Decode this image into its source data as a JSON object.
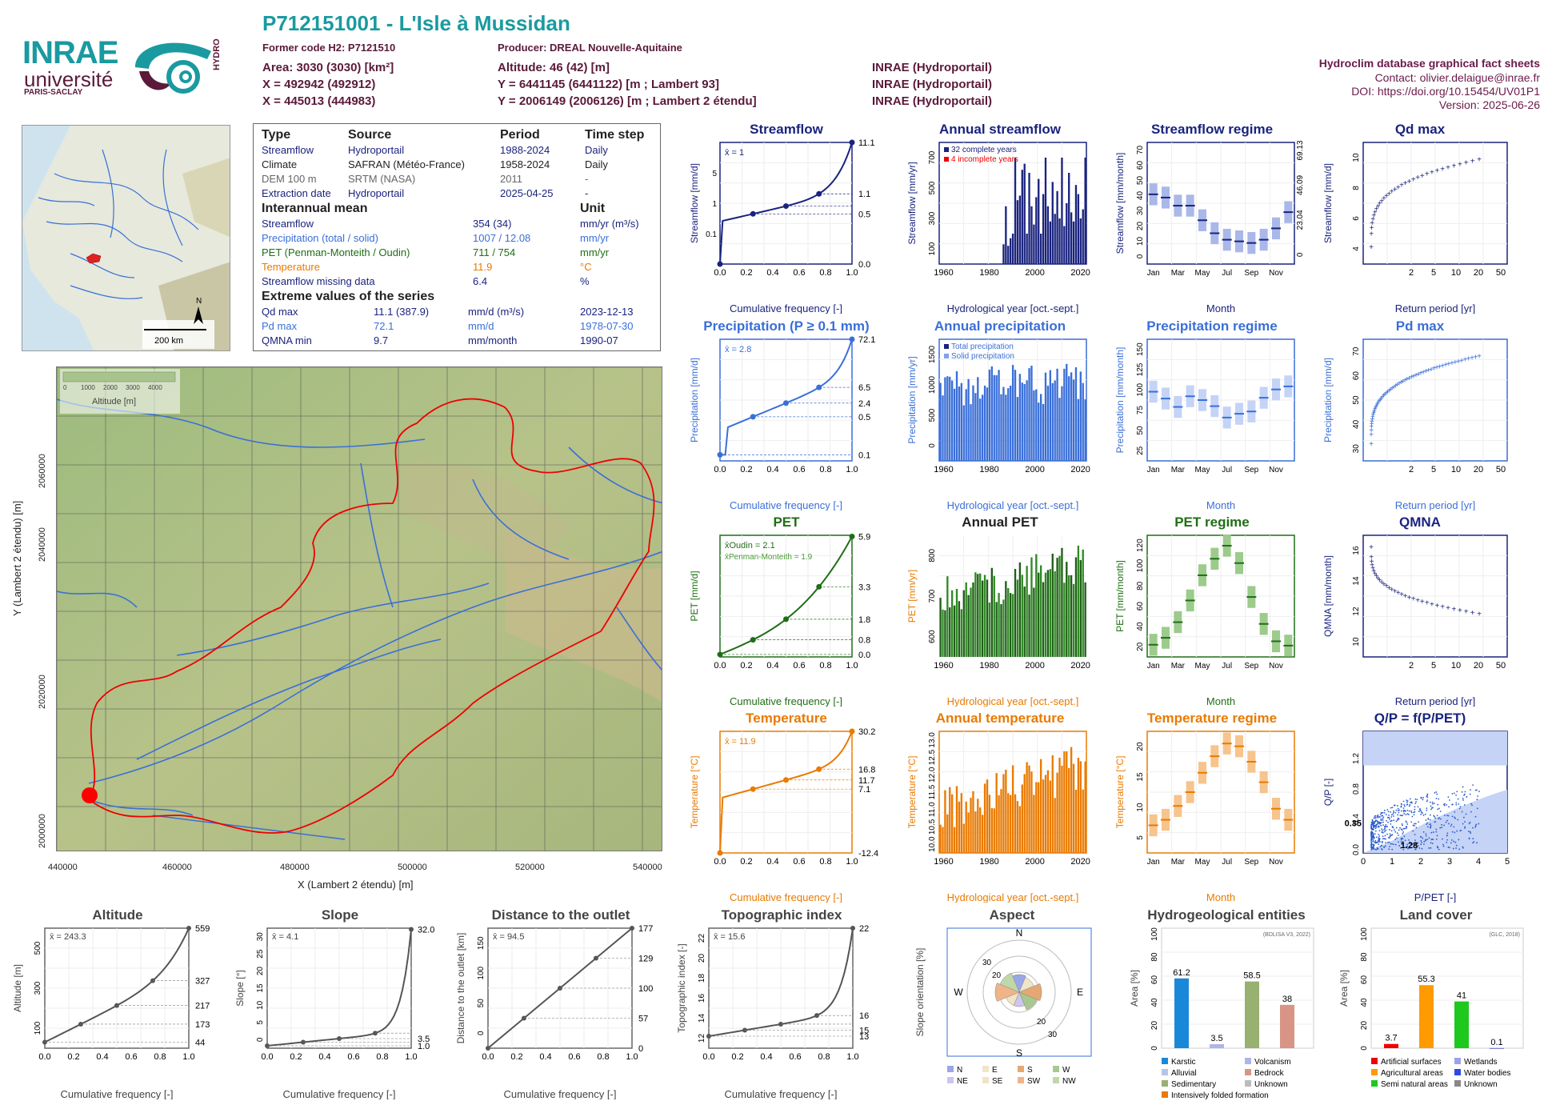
{
  "header": {
    "title": "P712151001 - L'Isle à Mussidan",
    "former_code": "Former code H2: P7121510",
    "producer": "Producer: DREAL Nouvelle-Aquitaine",
    "area": "Area: 3030 (3030) [km²]",
    "x93": "X = 492942 (492912)",
    "x2e": "X = 445013 (444983)",
    "altitude": "Altitude: 46 (42) [m]",
    "y93": "Y = 6441145 (6441122) [m ; Lambert 93]",
    "y2e": "Y = 2006149 (2006126) [m ; Lambert 2 étendu]",
    "src1": "INRAE (Hydroportail)",
    "src2": "INRAE (Hydroportail)",
    "src3": "INRAE (Hydroportail)",
    "db": "Hydroclim database graphical fact sheets",
    "contact": "Contact: olivier.delaigue@inrae.fr",
    "doi": "DOI: https://doi.org/10.15454/UV01P1",
    "version": "Version: 2025-06-26"
  },
  "logos": {
    "inrae": "INRAE",
    "univ": "université",
    "ps": "PARIS-SACLAY",
    "hydro": "HYDRO"
  },
  "colors": {
    "streamflow": "#1a237e",
    "precip": "#3a6fd8",
    "pet": "#1f6e16",
    "temp": "#ea7a00",
    "teal": "#1a9aa0"
  },
  "minimap": {
    "scale": "200 km",
    "north": "N"
  },
  "info": {
    "h_type": "Type",
    "h_source": "Source",
    "h_period": "Period",
    "h_step": "Time step",
    "rows": [
      {
        "type": "Streamflow",
        "source": "Hydroportail",
        "period": "1988-2024",
        "step": "Daily"
      },
      {
        "type": "Climate",
        "source": "SAFRAN (Météo-France)",
        "period": "1958-2024",
        "step": "Daily"
      },
      {
        "type": "DEM 100 m",
        "source": "SRTM (NASA)",
        "period": "2011",
        "step": "-"
      },
      {
        "type": "Extraction date",
        "source": "Hydroportail",
        "period": "2025-04-25",
        "step": "-"
      }
    ],
    "h_mean": "Interannual mean",
    "h_unit": "Unit",
    "means": [
      {
        "name": "Streamflow",
        "value": "354 (34)",
        "unit": "mm/yr (m³/s)"
      },
      {
        "name": "Precipitation (total / solid)",
        "value": "1007 / 12.08",
        "unit": "mm/yr"
      },
      {
        "name": "PET (Penman-Monteith / Oudin)",
        "value": "711 / 754",
        "unit": "mm/yr"
      },
      {
        "name": "Temperature",
        "value": "11.9",
        "unit": "°C"
      },
      {
        "name": "Streamflow missing data",
        "value": "6.4",
        "unit": "%"
      }
    ],
    "h_ext": "Extreme values of the series",
    "ext": [
      {
        "name": "Qd max",
        "value": "11.1 (387.9)",
        "unit": "mm/d (m³/s)",
        "date": "2023-12-13"
      },
      {
        "name": "Pd max",
        "value": "72.1",
        "unit": "mm/d",
        "date": "1978-07-30"
      },
      {
        "name": "QMNA min",
        "value": "9.7",
        "unit": "mm/month",
        "date": "1990-07"
      }
    ]
  },
  "bigmap": {
    "legend_title": "Altitude [m]",
    "legend_ticks": [
      "0",
      "1000",
      "2000",
      "3000",
      "4000"
    ],
    "xlabel": "X (Lambert 2 étendu) [m]",
    "ylabel": "Y (Lambert 2 étendu) [m]",
    "xticks": [
      "440000",
      "460000",
      "480000",
      "500000",
      "520000",
      "540000"
    ],
    "yticks": [
      "2000000",
      "2020000",
      "2040000",
      "2060000"
    ]
  },
  "chart_data": [
    {
      "id": "streamflow-fdc",
      "type": "line",
      "title": "Streamflow",
      "xlabel": "Cumulative frequency [-]",
      "ylabel": "Streamflow [mm/d]",
      "log": true,
      "mean": "x̄ = 1",
      "points": [
        [
          0,
          0.03
        ],
        [
          0.25,
          0.5
        ],
        [
          0.5,
          0.5
        ],
        [
          0.75,
          1.1
        ],
        [
          1.0,
          11.1
        ]
      ],
      "right_ticks": [
        "11.1",
        "1.1",
        "0.5",
        "0.0"
      ],
      "left_ticks": [
        "0.1",
        "1",
        "5"
      ]
    },
    {
      "id": "annual-streamflow",
      "type": "bar",
      "title": "Annual streamflow",
      "xlabel": "Hydrological year [oct.-sept.]",
      "ylabel": "Streamflow [mm/yr]",
      "legend": [
        "32 complete years",
        "4 incomplete years"
      ],
      "yticks": [
        "100",
        "300",
        "500",
        "700"
      ],
      "xticks": [
        "1960",
        "1980",
        "2000",
        "2020"
      ],
      "values": [
        130,
        380,
        120,
        170,
        200,
        700,
        420,
        450,
        620,
        660,
        200,
        600,
        380,
        260,
        440,
        560,
        200,
        460,
        700,
        380,
        280,
        540,
        330,
        480,
        300,
        700,
        250,
        400,
        600,
        340,
        280,
        520,
        460,
        300,
        360,
        700
      ]
    },
    {
      "id": "streamflow-regime",
      "type": "box",
      "title": "Streamflow regime",
      "xlabel": "Month",
      "ylabel": "Streamflow [mm/month]",
      "months": [
        "Jan",
        "Mar",
        "May",
        "Jul",
        "Sep",
        "Nov"
      ],
      "right_ticks": [
        "69.13",
        "46.09",
        "23.04",
        "0"
      ],
      "yticks": [
        "0",
        "10",
        "20",
        "30",
        "40",
        "50",
        "60",
        "70"
      ],
      "medians": [
        43,
        41,
        36,
        36,
        27,
        19,
        15,
        14,
        13,
        15,
        22,
        32
      ]
    },
    {
      "id": "qd-max",
      "type": "scatter",
      "title": "Qd max",
      "xlabel": "Return period [yr]",
      "ylabel": "Streamflow [mm/d]",
      "xticks": [
        "2",
        "5",
        "10",
        "20",
        "50"
      ],
      "yticks": [
        "4",
        "6",
        "8",
        "10"
      ]
    },
    {
      "id": "precip-fdc",
      "type": "line",
      "title": "Precipitation (P ≥ 0.1 mm)",
      "xlabel": "Cumulative frequency [-]",
      "ylabel": "Precipitation [mm/d]",
      "mean": "x̄ = 2.8",
      "right_ticks": [
        "72.1",
        "6.5",
        "2.4",
        "0.5",
        "0.1"
      ]
    },
    {
      "id": "annual-precip",
      "type": "bar",
      "title": "Annual precipitation",
      "xlabel": "Hydrological year [oct.-sept.]",
      "ylabel": "Precipitation [mm/yr]",
      "legend": [
        "Total precipitation",
        "Solid precipitation"
      ],
      "yticks": [
        "0",
        "500",
        "1000",
        "1500"
      ],
      "xticks": [
        "1960",
        "1980",
        "2000",
        "2020"
      ]
    },
    {
      "id": "precip-regime",
      "type": "box",
      "title": "Precipitation regime",
      "xlabel": "Month",
      "ylabel": "Precipitation [mm/month]",
      "yticks": [
        "25",
        "50",
        "75",
        "100",
        "125",
        "150"
      ],
      "medians": [
        91,
        82,
        71,
        85,
        80,
        72,
        57,
        62,
        65,
        83,
        94,
        98
      ]
    },
    {
      "id": "pd-max",
      "type": "scatter",
      "title": "Pd max",
      "xlabel": "Return period [yr]",
      "ylabel": "Precipitation [mm/d]",
      "yticks": [
        "30",
        "40",
        "50",
        "60",
        "70"
      ]
    },
    {
      "id": "pet-fdc",
      "type": "line",
      "title": "PET",
      "xlabel": "Cumulative frequency [-]",
      "ylabel": "PET [mm/d]",
      "mean": "x̄Oudin = 2.1",
      "mean2": "x̄Penman-Monteith = 1.9",
      "right_ticks": [
        "5.9",
        "3.3",
        "1.8",
        "0.8",
        "0.0"
      ]
    },
    {
      "id": "annual-pet",
      "type": "bar",
      "title": "Annual PET",
      "xlabel": "Hydrological year [oct.-sept.]",
      "ylabel": "PET [mm/yr]",
      "yticks": [
        "600",
        "700",
        "800"
      ],
      "xticks": [
        "1960",
        "1980",
        "2000",
        "2020"
      ]
    },
    {
      "id": "pet-regime",
      "type": "box",
      "title": "PET regime",
      "xlabel": "Month",
      "ylabel": "PET [mm/month]",
      "yticks": [
        "20",
        "40",
        "60",
        "80",
        "100",
        "120"
      ],
      "medians": [
        14,
        22,
        40,
        65,
        94,
        113,
        128,
        108,
        69,
        38,
        18,
        13
      ]
    },
    {
      "id": "qmna",
      "type": "scatter",
      "title": "QMNA",
      "xlabel": "Return period [yr]",
      "ylabel": "QMNA [mm/month]",
      "yticks": [
        "10",
        "12",
        "14",
        "16"
      ]
    },
    {
      "id": "temp-fdc",
      "type": "line",
      "title": "Temperature",
      "xlabel": "Cumulative frequency [-]",
      "ylabel": "Temperature [°C]",
      "mean": "x̄ = 11.9",
      "right_ticks": [
        "30.2",
        "16.8",
        "11.7",
        "7.1",
        "-12.4"
      ]
    },
    {
      "id": "annual-temp",
      "type": "bar",
      "title": "Annual temperature",
      "xlabel": "Hydrological year [oct.-sept.]",
      "ylabel": "Temperature [°C]",
      "yticks": [
        "10.0",
        "10.5",
        "11.0",
        "11.5",
        "12.0",
        "12.5",
        "13.0"
      ],
      "xticks": [
        "1960",
        "1980",
        "2000",
        "2020"
      ]
    },
    {
      "id": "temp-regime",
      "type": "box",
      "title": "Temperature regime",
      "xlabel": "Month",
      "ylabel": "Temperature [°C]",
      "yticks": [
        "5",
        "10",
        "15",
        "20"
      ],
      "medians": [
        5,
        6,
        8.5,
        11,
        14.5,
        17.5,
        19.8,
        19.3,
        16.5,
        12.8,
        8,
        6
      ]
    },
    {
      "id": "qp-ppet",
      "type": "scatter",
      "title": "Q/P = f(P/PET)",
      "xlabel": "P/PET [-]",
      "ylabel": "Q/P [-]",
      "labels": [
        "0.35",
        "1.28"
      ],
      "xticks": [
        "0",
        "1",
        "2",
        "3",
        "4",
        "5"
      ],
      "yticks": [
        "0.0",
        "0.4",
        "0.8",
        "1.2"
      ]
    },
    {
      "id": "altitude-cdf",
      "type": "line",
      "title": "Altitude",
      "xlabel": "Cumulative frequency [-]",
      "ylabel": "Altitude [m]",
      "mean": "x̄ = 243.3",
      "right_ticks": [
        "559",
        "327",
        "217",
        "173",
        "44"
      ],
      "yticks": [
        "100",
        "300",
        "500"
      ]
    },
    {
      "id": "slope-cdf",
      "type": "line",
      "title": "Slope",
      "xlabel": "Cumulative frequency [-]",
      "ylabel": "Slope [°]",
      "mean": "x̄ = 4.1",
      "right_ticks": [
        "32.0",
        "3.5",
        "1.0"
      ],
      "yticks": [
        "0",
        "5",
        "10",
        "15",
        "20",
        "25",
        "30"
      ]
    },
    {
      "id": "distance-cdf",
      "type": "line",
      "title": "Distance to the outlet",
      "xlabel": "Cumulative frequency [-]",
      "ylabel": "Distance to the outlet [km]",
      "mean": "x̄ = 94.5",
      "right_ticks": [
        "177",
        "129",
        "100",
        "57",
        "0"
      ],
      "yticks": [
        "0",
        "50",
        "100",
        "150"
      ]
    },
    {
      "id": "topo-cdf",
      "type": "line",
      "title": "Topographic index",
      "xlabel": "Cumulative frequency [-]",
      "ylabel": "Topographic index [-]",
      "mean": "x̄ = 15.6",
      "right_ticks": [
        "22",
        "16",
        "15",
        "13"
      ],
      "yticks": [
        "12",
        "14",
        "16",
        "18",
        "20",
        "22"
      ]
    },
    {
      "id": "aspect",
      "type": "pie",
      "title": "Aspect",
      "ylabel": "Slope orientation [%]",
      "compass": [
        "N",
        "E",
        "S",
        "W"
      ],
      "rings": [
        "20",
        "30",
        "20",
        "30"
      ],
      "legend": [
        "N",
        "E",
        "S",
        "W",
        "NE",
        "SE",
        "SW",
        "NW"
      ]
    },
    {
      "id": "hydrogeology",
      "type": "bar",
      "title": "Hydrogeological entities",
      "ylabel": "Area [%]",
      "source": "(BDLISA V3, 2022)",
      "values": [
        61.2,
        3.5,
        58.5,
        38
      ],
      "labels": [
        "61.2",
        "3.5",
        "58.5",
        "38"
      ],
      "legend": [
        "Karstic",
        "Volcanism",
        "Alluvial",
        "Bedrock",
        "Sedimentary",
        "Unknown",
        "Intensively folded formation"
      ],
      "yticks": [
        "0",
        "20",
        "40",
        "60",
        "80",
        "100"
      ]
    },
    {
      "id": "landcover",
      "type": "bar",
      "title": "Land cover",
      "ylabel": "Area [%]",
      "source": "(GLC, 2018)",
      "values": [
        3.7,
        55.3,
        41,
        0.1
      ],
      "labels": [
        "3.7",
        "55.3",
        "41",
        "0.1"
      ],
      "legend": [
        "Artificial surfaces",
        "Wetlands",
        "Agricultural areas",
        "Water bodies",
        "Semi natural areas",
        "Unknown"
      ],
      "yticks": [
        "0",
        "20",
        "40",
        "60",
        "80",
        "100"
      ]
    }
  ]
}
